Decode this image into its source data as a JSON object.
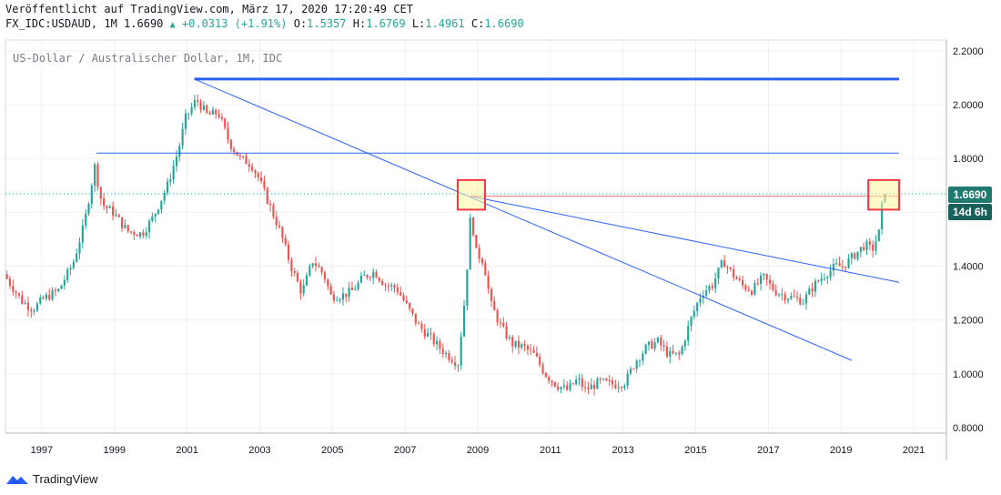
{
  "header": {
    "line1": "Veröffentlicht auf TradingView.com, März 17, 2020 17:20:49 CET",
    "symbol_info": "FX_IDC:USDAUD, 1M 1.6690",
    "change": "+0.0313 (+1.91%)",
    "ohlc": {
      "o_label": "O:",
      "o_value": "1.5357",
      "h_label": "H:",
      "h_value": "1.6769",
      "l_label": "L:",
      "l_value": "1.4961",
      "c_label": "C:",
      "c_value": "1.6690"
    }
  },
  "footer": {
    "brand": "TradingView"
  },
  "colors": {
    "up": "#26a69a",
    "down": "#ef5350",
    "trend": "#2962ff",
    "highlight_box": "#fff59d",
    "highlight_border": "#f23645",
    "price_label": "#1e7a6e",
    "timer_label": "#18605a"
  },
  "chart_data": {
    "type": "candlestick",
    "title": "US-Dollar / Australischer Dollar, 1M, IDC",
    "xlabel": "",
    "ylabel": "",
    "x_range": [
      1996.0,
      2021.9
    ],
    "ylim": [
      0.78,
      2.24
    ],
    "grid": true,
    "y_ticks": [
      "0.8000",
      "1.0000",
      "1.2000",
      "1.4000",
      "1.6000",
      "1.8000",
      "2.0000",
      "2.2000"
    ],
    "x_ticks": [
      "1997",
      "1999",
      "2001",
      "2003",
      "2005",
      "2007",
      "2009",
      "2011",
      "2013",
      "2015",
      "2017",
      "2019",
      "2021"
    ],
    "last_price": "1.6690",
    "timer": "14d 6h",
    "series": [
      {
        "points": [
          [
            1996.0,
            1.37
          ],
          [
            1996.5,
            1.27
          ],
          [
            1996.8,
            1.24
          ],
          [
            1997.1,
            1.28
          ],
          [
            1997.5,
            1.31
          ],
          [
            1997.9,
            1.41
          ],
          [
            1998.2,
            1.55
          ],
          [
            1998.5,
            1.77
          ],
          [
            1998.7,
            1.63
          ],
          [
            1999.0,
            1.6
          ],
          [
            1999.4,
            1.53
          ],
          [
            1999.8,
            1.52
          ],
          [
            2000.1,
            1.58
          ],
          [
            2000.5,
            1.7
          ],
          [
            2000.8,
            1.83
          ],
          [
            2001.0,
            1.95
          ],
          [
            2001.3,
            2.02
          ],
          [
            2001.6,
            1.96
          ],
          [
            2001.9,
            1.97
          ],
          [
            2002.2,
            1.86
          ],
          [
            2002.5,
            1.8
          ],
          [
            2002.8,
            1.78
          ],
          [
            2003.0,
            1.73
          ],
          [
            2003.3,
            1.63
          ],
          [
            2003.6,
            1.53
          ],
          [
            2003.9,
            1.4
          ],
          [
            2004.2,
            1.3
          ],
          [
            2004.5,
            1.42
          ],
          [
            2004.8,
            1.37
          ],
          [
            2005.0,
            1.29
          ],
          [
            2005.3,
            1.29
          ],
          [
            2005.6,
            1.31
          ],
          [
            2005.9,
            1.36
          ],
          [
            2006.2,
            1.38
          ],
          [
            2006.5,
            1.33
          ],
          [
            2006.8,
            1.32
          ],
          [
            2007.1,
            1.25
          ],
          [
            2007.4,
            1.18
          ],
          [
            2007.7,
            1.14
          ],
          [
            2007.9,
            1.11
          ],
          [
            2008.2,
            1.07
          ],
          [
            2008.5,
            1.04
          ],
          [
            2008.7,
            1.3
          ],
          [
            2008.85,
            1.6
          ],
          [
            2009.0,
            1.45
          ],
          [
            2009.2,
            1.42
          ],
          [
            2009.4,
            1.26
          ],
          [
            2009.7,
            1.17
          ],
          [
            2010.0,
            1.11
          ],
          [
            2010.3,
            1.1
          ],
          [
            2010.6,
            1.07
          ],
          [
            2010.9,
            1.0
          ],
          [
            2011.2,
            0.96
          ],
          [
            2011.5,
            0.94
          ],
          [
            2011.8,
            0.98
          ],
          [
            2012.0,
            0.94
          ],
          [
            2012.4,
            0.97
          ],
          [
            2012.8,
            0.96
          ],
          [
            2013.1,
            0.97
          ],
          [
            2013.4,
            1.05
          ],
          [
            2013.7,
            1.1
          ],
          [
            2014.0,
            1.12
          ],
          [
            2014.3,
            1.07
          ],
          [
            2014.6,
            1.07
          ],
          [
            2014.9,
            1.2
          ],
          [
            2015.2,
            1.3
          ],
          [
            2015.5,
            1.33
          ],
          [
            2015.8,
            1.42
          ],
          [
            2016.0,
            1.38
          ],
          [
            2016.3,
            1.33
          ],
          [
            2016.6,
            1.31
          ],
          [
            2016.9,
            1.36
          ],
          [
            2017.2,
            1.31
          ],
          [
            2017.5,
            1.29
          ],
          [
            2017.8,
            1.28
          ],
          [
            2018.0,
            1.27
          ],
          [
            2018.3,
            1.33
          ],
          [
            2018.6,
            1.37
          ],
          [
            2018.9,
            1.4
          ],
          [
            2019.1,
            1.4
          ],
          [
            2019.4,
            1.44
          ],
          [
            2019.7,
            1.48
          ],
          [
            2019.9,
            1.46
          ],
          [
            2020.1,
            1.53
          ],
          [
            2020.2,
            1.669
          ]
        ]
      }
    ],
    "lines": [
      {
        "kind": "horizontal",
        "y": 2.095,
        "x_start": 2001.2,
        "x_end": 2020.6,
        "weight": "thick"
      },
      {
        "kind": "horizontal",
        "y": 1.82,
        "x_start": 1998.5,
        "x_end": 2020.6,
        "weight": "thin"
      },
      {
        "kind": "trend",
        "points": [
          [
            2001.2,
            2.095
          ],
          [
            2019.3,
            1.05
          ]
        ]
      },
      {
        "kind": "trend",
        "points": [
          [
            2008.8,
            1.66
          ],
          [
            2020.6,
            1.34
          ]
        ]
      },
      {
        "kind": "horizontal-red",
        "y": 1.66,
        "x_start": 2008.8,
        "x_end": 2020.6
      }
    ],
    "highlights": [
      {
        "x_range": [
          2008.45,
          2009.2
        ],
        "y_range": [
          1.61,
          1.72
        ]
      },
      {
        "x_range": [
          2019.75,
          2020.6
        ],
        "y_range": [
          1.61,
          1.72
        ]
      }
    ]
  }
}
